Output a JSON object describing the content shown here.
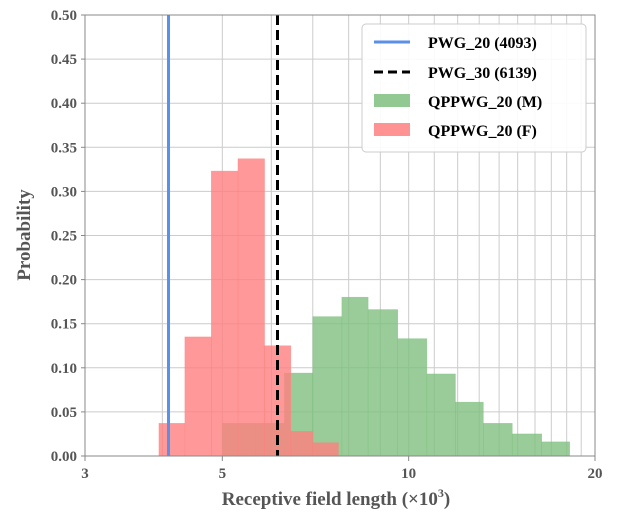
{
  "chart_data": {
    "type": "bar",
    "xlabel": "Receptive field length (×10",
    "xlabel_sup": "3",
    "xlabel_close": ")",
    "ylabel": "Probability",
    "xscale": "log",
    "xlim": [
      3,
      20
    ],
    "ylim": [
      0,
      0.5
    ],
    "xticks": [
      3,
      5,
      10,
      20
    ],
    "yticks": [
      0.0,
      0.05,
      0.1,
      0.15,
      0.2,
      0.25,
      0.3,
      0.35,
      0.4,
      0.45,
      0.5
    ],
    "ytick_labels": [
      "0.00",
      "0.05",
      "0.10",
      "0.15",
      "0.20",
      "0.25",
      "0.30",
      "0.35",
      "0.40",
      "0.45",
      "0.50"
    ],
    "grid": true,
    "legend_position": "top-right",
    "vlines": [
      {
        "name": "PWG_20 (4093)",
        "x": 4.093,
        "color": "#5b8fe8",
        "style": "solid"
      },
      {
        "name": "PWG_30 (6139)",
        "x": 6.139,
        "color": "#000000",
        "style": "dashed"
      }
    ],
    "series": [
      {
        "name": "QPPWG_20 (M)",
        "color": "#7fbf7f",
        "edges": [
          5.0,
          5.66,
          6.3,
          7.0,
          7.8,
          8.6,
          9.6,
          10.7,
          11.9,
          13.2,
          14.7,
          16.4,
          18.2
        ],
        "values": [
          0.037,
          0.037,
          0.094,
          0.158,
          0.18,
          0.166,
          0.133,
          0.093,
          0.061,
          0.037,
          0.025,
          0.016
        ]
      },
      {
        "name": "QPPWG_20 (F)",
        "color": "#ff8080",
        "edges": [
          3.95,
          4.35,
          4.8,
          5.3,
          5.85,
          6.45,
          7.0,
          7.7
        ],
        "values": [
          0.037,
          0.135,
          0.323,
          0.337,
          0.125,
          0.028,
          0.015
        ]
      }
    ]
  }
}
